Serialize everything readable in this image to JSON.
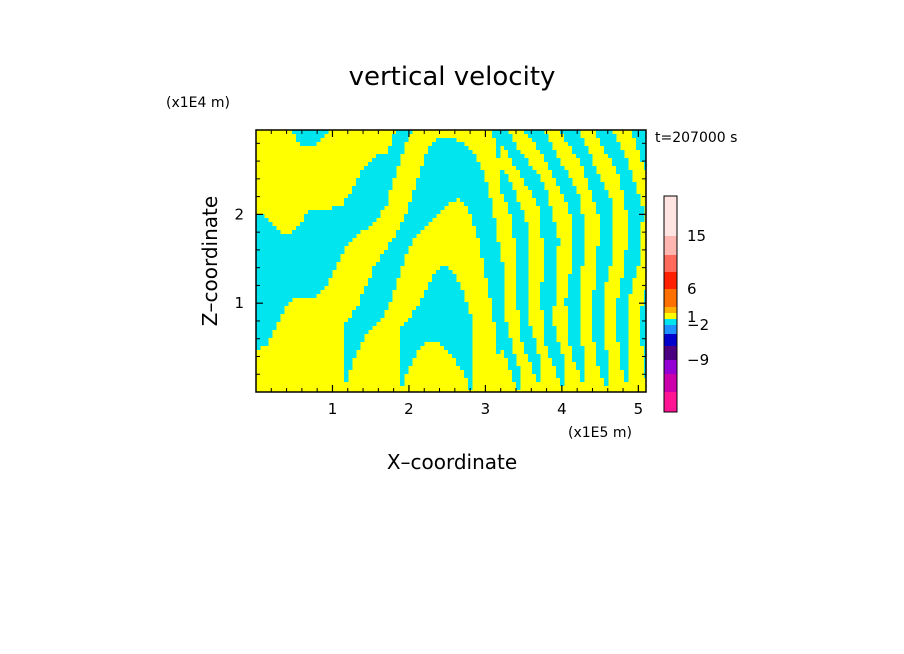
{
  "chart_data": {
    "type": "heatmap",
    "title": "vertical velocity",
    "xlabel": "X–coordinate",
    "ylabel": "Z–coordinate",
    "x_unit": "(x1E5 m)",
    "y_unit": "(x1E4 m)",
    "time_label": "t=207000 s",
    "xlim": [
      0,
      5.1
    ],
    "ylim": [
      0,
      2.95
    ],
    "x_ticks": [
      "1",
      "2",
      "3",
      "4",
      "5"
    ],
    "y_ticks": [
      "1",
      "2"
    ],
    "pattern_colors": [
      "#ffff00",
      "#00e5ee"
    ],
    "colorbar": {
      "tick_labels": [
        "15",
        "6",
        "1",
        "−2",
        "−9"
      ],
      "levels_top_to_bottom": [
        {
          "color": "#ffe4e1",
          "label": ""
        },
        {
          "color": "#ffb6b0",
          "label": "15"
        },
        {
          "color": "#ff6a5a",
          "label": ""
        },
        {
          "color": "#ff2000",
          "label": ""
        },
        {
          "color": "#ff7000",
          "label": "6"
        },
        {
          "color": "#ffb000",
          "label": ""
        },
        {
          "color": "#ffff00",
          "label": "1"
        },
        {
          "color": "#00e5ee",
          "label": ""
        },
        {
          "color": "#1e90ff",
          "label": "−2"
        },
        {
          "color": "#0000cd",
          "label": ""
        },
        {
          "color": "#4b0082",
          "label": ""
        },
        {
          "color": "#9400d3",
          "label": "−9"
        },
        {
          "color": "#cc00aa",
          "label": ""
        },
        {
          "color": "#ff1493",
          "label": ""
        }
      ]
    }
  }
}
